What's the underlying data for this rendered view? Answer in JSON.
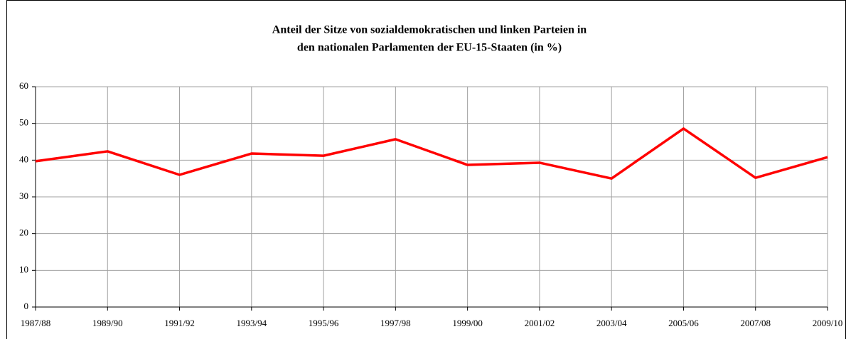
{
  "chart_data": {
    "type": "line",
    "title": [
      "Anteil der Sitze von sozialdemokratischen und linken Parteien in",
      "den nationalen Parlamenten der EU-15-Staaten (in %)"
    ],
    "categories": [
      "1987/88",
      "1989/90",
      "1991/92",
      "1993/94",
      "1995/96",
      "1997/98",
      "1999/00",
      "2001/02",
      "2003/04",
      "2005/06",
      "2007/08",
      "2009/10"
    ],
    "series": [
      {
        "color": "#ff0000",
        "values": [
          39.7,
          42.4,
          36.0,
          41.8,
          41.2,
          45.7,
          38.7,
          39.3,
          35.0,
          48.6,
          35.2,
          40.8
        ]
      }
    ],
    "ylim": [
      0,
      60
    ],
    "yticks": [
      0,
      10,
      20,
      30,
      40,
      50,
      60
    ],
    "grid": true
  }
}
